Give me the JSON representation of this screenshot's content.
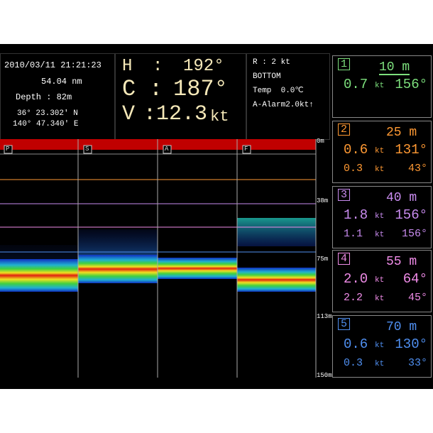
{
  "header": {
    "datetime": "2010/03/11 21:21:23",
    "distance": "54.04 nm",
    "depth": "Depth : 82m",
    "latitude": "36° 23.302' N",
    "longitude": "140° 47.340' E",
    "heading": [
      {
        "label": "H",
        "sep": ":",
        "value": "192°"
      },
      {
        "label": "C",
        "sep": ":",
        "value": "187°"
      },
      {
        "label": "V",
        "sep": ":12.3",
        "value": "kt"
      }
    ],
    "status": [
      "R : 2 kt",
      "BOTTOM",
      "Temp  0.0℃",
      "A-Alarm2.0kt↑"
    ]
  },
  "echogram": {
    "scale": [
      "0m",
      "38m",
      "75m",
      "113m",
      "150m"
    ],
    "markers": [
      "P",
      "S",
      "A",
      "F"
    ]
  },
  "panels": [
    {
      "number": "1",
      "color": "#7de07d",
      "depth": "10 m",
      "rows": [
        {
          "speed": "0.7",
          "unit": "kt",
          "dir": "156°"
        }
      ]
    },
    {
      "number": "2",
      "color": "#ff9933",
      "depth": "25 m",
      "rows": [
        {
          "speed": "0.6",
          "unit": "kt",
          "dir": "131°"
        },
        {
          "speed": "0.3",
          "unit": "kt",
          "dir": "43°"
        }
      ]
    },
    {
      "number": "3",
      "color": "#c98cf0",
      "depth": "40 m",
      "rows": [
        {
          "speed": "1.8",
          "unit": "kt",
          "dir": "156°"
        },
        {
          "speed": "1.1",
          "unit": "kt",
          "dir": "156°"
        }
      ]
    },
    {
      "number": "4",
      "color": "#f08ce8",
      "depth": "55 m",
      "rows": [
        {
          "speed": "2.0",
          "unit": "kt",
          "dir": "64°"
        },
        {
          "speed": "2.2",
          "unit": "kt",
          "dir": "45°"
        }
      ]
    },
    {
      "number": "5",
      "color": "#4f8ff0",
      "depth": "70 m",
      "rows": [
        {
          "speed": "0.6",
          "unit": "kt",
          "dir": "130°"
        },
        {
          "speed": "0.3",
          "unit": "kt",
          "dir": "33°"
        }
      ]
    }
  ]
}
